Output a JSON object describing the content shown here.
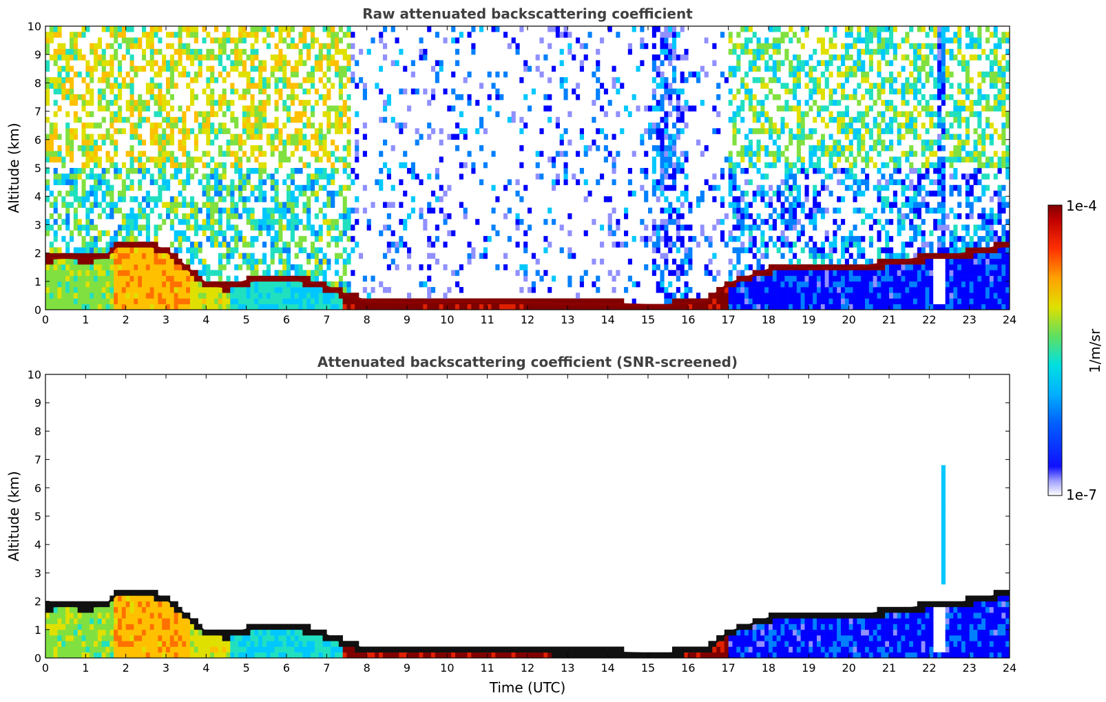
{
  "chart_data": [
    {
      "type": "heatmap",
      "title": "Raw attenuated backscattering coefficient",
      "xlabel": "",
      "ylabel": "Altitude (km)",
      "xlim": [
        0,
        24
      ],
      "ylim": [
        0,
        10
      ],
      "xticks": [
        "0",
        "1",
        "2",
        "3",
        "4",
        "5",
        "6",
        "7",
        "8",
        "9",
        "10",
        "11",
        "12",
        "13",
        "14",
        "15",
        "16",
        "17",
        "18",
        "19",
        "20",
        "21",
        "22",
        "23",
        "24"
      ],
      "yticks": [
        "0",
        "1",
        "2",
        "3",
        "4",
        "5",
        "6",
        "7",
        "8",
        "9",
        "10"
      ],
      "colorbar": {
        "min_label": "1e-7",
        "max_label": "1e-4",
        "label": "1/m/sr",
        "scale": "log"
      },
      "boundary_layer_top_km": {
        "time_utc": [
          0,
          0.5,
          1,
          1.5,
          1.8,
          2.5,
          3,
          3.5,
          4,
          4.5,
          5,
          5.5,
          6,
          6.5,
          7,
          7.5,
          8,
          9,
          10,
          11,
          12,
          13,
          14,
          15,
          15.5,
          16,
          16.5,
          17,
          17.5,
          18,
          18.5,
          19,
          20,
          21,
          22,
          22.3,
          23,
          24
        ],
        "altitude_km": [
          1.8,
          1.85,
          1.8,
          1.85,
          2.3,
          2.3,
          2.1,
          1.5,
          0.9,
          0.8,
          1.0,
          1.1,
          1.1,
          1.0,
          0.8,
          0.5,
          0.3,
          0.25,
          0.3,
          0.3,
          0.25,
          0.2,
          0.2,
          0.15,
          0.15,
          0.25,
          0.35,
          0.9,
          1.15,
          1.4,
          1.55,
          1.45,
          1.45,
          1.65,
          1.85,
          1.85,
          2.0,
          2.3
        ]
      }
    },
    {
      "type": "heatmap",
      "title": "Attenuated backscattering coefficient (SNR-screened)",
      "xlabel": "Time (UTC)",
      "ylabel": "Altitude (km)",
      "xlim": [
        0,
        24
      ],
      "ylim": [
        0,
        10
      ],
      "xticks": [
        "0",
        "1",
        "2",
        "3",
        "4",
        "5",
        "6",
        "7",
        "8",
        "9",
        "10",
        "11",
        "12",
        "13",
        "14",
        "15",
        "16",
        "17",
        "18",
        "19",
        "20",
        "21",
        "22",
        "23",
        "24"
      ],
      "yticks": [
        "0",
        "1",
        "2",
        "3",
        "4",
        "5",
        "6",
        "7",
        "8",
        "9",
        "10"
      ],
      "colorbar": {
        "min_label": "1e-7",
        "max_label": "1e-4",
        "label": "1/m/sr",
        "scale": "log"
      }
    }
  ],
  "colors": {
    "colormap": [
      "#ffffff",
      "#9090ff",
      "#0000ff",
      "#0080ff",
      "#00c8ff",
      "#20e0c0",
      "#80e040",
      "#e0e000",
      "#ffc000",
      "#ff7000",
      "#e02000",
      "#800000"
    ],
    "title_gray": "#404040"
  }
}
